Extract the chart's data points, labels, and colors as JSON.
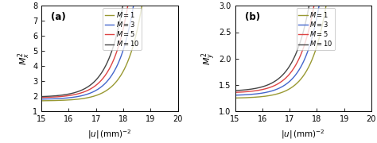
{
  "xlim": [
    15,
    20
  ],
  "panel_a": {
    "ylim": [
      1,
      8
    ],
    "yticks": [
      1,
      2,
      3,
      4,
      5,
      6,
      7,
      8
    ],
    "ylabel": "$M_x^2$",
    "label": "(a)",
    "curves": {
      "M=1": {
        "color": "#999933",
        "a": 0.012,
        "b": 1.7
      },
      "M=3": {
        "color": "#4466cc",
        "a": 0.02,
        "b": 1.8
      },
      "M=5": {
        "color": "#dd4444",
        "a": 0.028,
        "b": 1.9
      },
      "M=10": {
        "color": "#444444",
        "a": 0.038,
        "b": 1.95
      }
    }
  },
  "panel_b": {
    "ylim": [
      1.0,
      3.0
    ],
    "yticks": [
      1.0,
      1.5,
      2.0,
      2.5,
      3.0
    ],
    "ylabel": "$M_y^2$",
    "label": "(b)",
    "curves": {
      "M=1": {
        "color": "#999933",
        "a": 0.006,
        "b": 1.25
      },
      "M=3": {
        "color": "#4466cc",
        "a": 0.009,
        "b": 1.3
      },
      "M=5": {
        "color": "#dd4444",
        "a": 0.012,
        "b": 1.35
      },
      "M=10": {
        "color": "#444444",
        "a": 0.016,
        "b": 1.38
      }
    }
  },
  "xlabel": "$|u|\\,(\\mathrm{mm})^{-2}$",
  "legend_labels": [
    "$M=1$",
    "$M=3$",
    "$M=5$",
    "$M=10$"
  ],
  "legend_colors": [
    "#999933",
    "#4466cc",
    "#dd4444",
    "#444444"
  ],
  "xticks": [
    15,
    16,
    17,
    18,
    19,
    20
  ],
  "x_start": 15,
  "x_end": 20,
  "exp_rate": 0.85
}
